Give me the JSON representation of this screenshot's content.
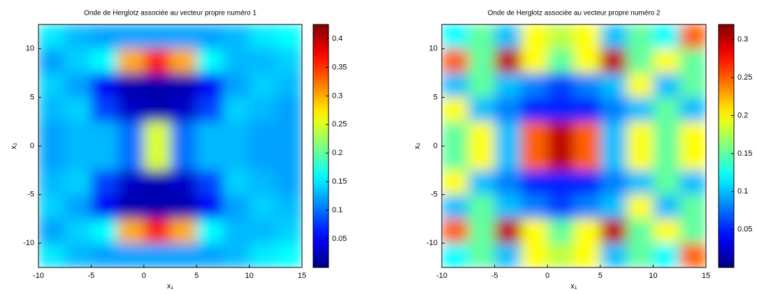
{
  "chart_data": [
    {
      "type": "heatmap",
      "title": "Onde de Herglotz associée au vecteur propre numéro 1",
      "xlabel": "x₁",
      "ylabel": "x₂",
      "colormap": "jet",
      "x": [
        -8.75,
        -6.25,
        -3.75,
        -1.25,
        1.25,
        3.75,
        6.25,
        8.75,
        11.25,
        13.75
      ],
      "y": [
        11.25,
        8.75,
        6.25,
        3.75,
        1.25,
        -1.25,
        -3.75,
        -6.25,
        -8.75,
        -11.25
      ],
      "z": [
        [
          0.15,
          0.13,
          0.12,
          0.12,
          0.12,
          0.12,
          0.12,
          0.13,
          0.15,
          0.16
        ],
        [
          0.12,
          0.14,
          0.16,
          0.3,
          0.36,
          0.3,
          0.16,
          0.13,
          0.13,
          0.14
        ],
        [
          0.14,
          0.12,
          0.05,
          0.02,
          0.02,
          0.02,
          0.05,
          0.12,
          0.14,
          0.13
        ],
        [
          0.13,
          0.14,
          0.08,
          0.03,
          0.02,
          0.03,
          0.08,
          0.14,
          0.13,
          0.12
        ],
        [
          0.12,
          0.13,
          0.13,
          0.1,
          0.25,
          0.1,
          0.13,
          0.13,
          0.12,
          0.12
        ],
        [
          0.12,
          0.13,
          0.13,
          0.1,
          0.25,
          0.1,
          0.13,
          0.13,
          0.12,
          0.12
        ],
        [
          0.13,
          0.14,
          0.08,
          0.03,
          0.02,
          0.03,
          0.08,
          0.14,
          0.13,
          0.12
        ],
        [
          0.14,
          0.12,
          0.05,
          0.02,
          0.02,
          0.02,
          0.05,
          0.12,
          0.14,
          0.13
        ],
        [
          0.12,
          0.14,
          0.16,
          0.3,
          0.36,
          0.3,
          0.16,
          0.13,
          0.13,
          0.14
        ],
        [
          0.15,
          0.13,
          0.12,
          0.12,
          0.12,
          0.12,
          0.12,
          0.13,
          0.15,
          0.16
        ]
      ],
      "xlim": [
        -10,
        15
      ],
      "ylim": [
        -12.5,
        12.5
      ],
      "xticks": [
        -10,
        -5,
        0,
        5,
        10,
        15
      ],
      "yticks": [
        -10,
        -5,
        0,
        5,
        10
      ],
      "clim": [
        0,
        0.425
      ],
      "cticks": [
        0.05,
        0.1,
        0.15,
        0.2,
        0.25,
        0.3,
        0.35,
        0.4
      ]
    },
    {
      "type": "heatmap",
      "title": "Onde de Herglotz associée au vecteur propre numéro 2",
      "xlabel": "x₁",
      "ylabel": "x₂",
      "colormap": "jet",
      "x": [
        -8.75,
        -6.25,
        -3.75,
        -1.25,
        1.25,
        3.75,
        6.25,
        8.75,
        11.25,
        13.75
      ],
      "y": [
        11.25,
        8.75,
        6.25,
        3.75,
        1.25,
        -1.25,
        -3.75,
        -6.25,
        -8.75,
        -11.25
      ],
      "z": [
        [
          0.12,
          0.15,
          0.1,
          0.2,
          0.18,
          0.2,
          0.1,
          0.15,
          0.12,
          0.25
        ],
        [
          0.25,
          0.15,
          0.3,
          0.2,
          0.15,
          0.2,
          0.3,
          0.15,
          0.2,
          0.15
        ],
        [
          0.1,
          0.15,
          0.1,
          0.08,
          0.06,
          0.08,
          0.1,
          0.2,
          0.1,
          0.15
        ],
        [
          0.2,
          0.1,
          0.08,
          0.05,
          0.05,
          0.05,
          0.08,
          0.1,
          0.15,
          0.1
        ],
        [
          0.15,
          0.2,
          0.1,
          0.25,
          0.3,
          0.25,
          0.1,
          0.2,
          0.15,
          0.2
        ],
        [
          0.15,
          0.2,
          0.1,
          0.25,
          0.3,
          0.25,
          0.1,
          0.2,
          0.15,
          0.2
        ],
        [
          0.2,
          0.1,
          0.08,
          0.05,
          0.05,
          0.05,
          0.08,
          0.1,
          0.15,
          0.1
        ],
        [
          0.1,
          0.15,
          0.1,
          0.08,
          0.06,
          0.08,
          0.1,
          0.2,
          0.1,
          0.15
        ],
        [
          0.25,
          0.15,
          0.3,
          0.2,
          0.15,
          0.2,
          0.3,
          0.15,
          0.2,
          0.15
        ],
        [
          0.12,
          0.15,
          0.1,
          0.2,
          0.18,
          0.2,
          0.1,
          0.15,
          0.12,
          0.25
        ]
      ],
      "xlim": [
        -10,
        15
      ],
      "ylim": [
        -12.5,
        12.5
      ],
      "xticks": [
        -10,
        -5,
        0,
        5,
        10,
        15
      ],
      "yticks": [
        -10,
        -5,
        0,
        5,
        10
      ],
      "clim": [
        0,
        0.32
      ],
      "cticks": [
        0.05,
        0.1,
        0.15,
        0.2,
        0.25,
        0.3
      ]
    }
  ]
}
